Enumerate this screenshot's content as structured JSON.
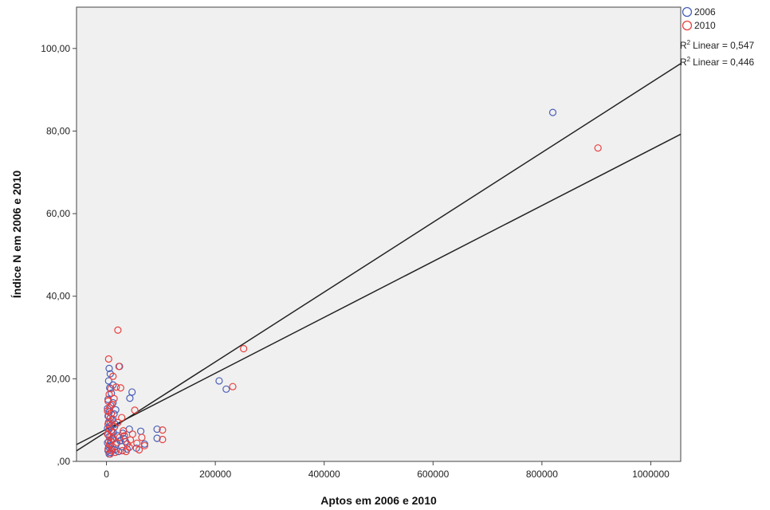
{
  "chart_data": {
    "type": "scatter",
    "title": "",
    "xlabel": "Aptos em 2006 e 2010",
    "ylabel": "Índice N em 2006 e 2010",
    "xlim": [
      -55000,
      1055000
    ],
    "ylim": [
      0,
      110
    ],
    "x_ticks": [
      {
        "value": 0,
        "label": "0"
      },
      {
        "value": 200000,
        "label": "200000"
      },
      {
        "value": 400000,
        "label": "400000"
      },
      {
        "value": 600000,
        "label": "600000"
      },
      {
        "value": 800000,
        "label": "800000"
      },
      {
        "value": 1000000,
        "label": "1000000"
      }
    ],
    "y_ticks": [
      {
        "value": 0,
        "label": ",00"
      },
      {
        "value": 20,
        "label": "20,00"
      },
      {
        "value": 40,
        "label": "40,00"
      },
      {
        "value": 60,
        "label": "60,00"
      },
      {
        "value": 80,
        "label": "80,00"
      },
      {
        "value": 100,
        "label": "100,00"
      }
    ],
    "grid": false,
    "plot_background": "#f0f0f0",
    "legend_position": "top-right",
    "series": [
      {
        "name": "2006",
        "color": "#4a5fb8",
        "points": [
          [
            820000,
            84.5
          ],
          [
            207000,
            19.5
          ],
          [
            220000,
            17.5
          ],
          [
            47000,
            16.8
          ],
          [
            43000,
            15.3
          ],
          [
            93000,
            7.8
          ],
          [
            93000,
            5.6
          ],
          [
            63000,
            7.3
          ],
          [
            55000,
            3.2
          ],
          [
            70000,
            4.2
          ],
          [
            42000,
            7.8
          ],
          [
            32000,
            5.5
          ],
          [
            24000,
            23.0
          ],
          [
            5000,
            22.5
          ],
          [
            7000,
            21.2
          ],
          [
            4000,
            19.5
          ],
          [
            6000,
            17.8
          ],
          [
            9000,
            16.5
          ],
          [
            3000,
            15.0
          ],
          [
            12000,
            14.2
          ],
          [
            8000,
            13.5
          ],
          [
            2000,
            12.8
          ],
          [
            5000,
            12.0
          ],
          [
            14000,
            11.5
          ],
          [
            3000,
            11.0
          ],
          [
            7000,
            10.5
          ],
          [
            10000,
            10.0
          ],
          [
            4000,
            9.5
          ],
          [
            16000,
            9.0
          ],
          [
            6000,
            8.5
          ],
          [
            2000,
            8.0
          ],
          [
            9000,
            7.5
          ],
          [
            13000,
            7.0
          ],
          [
            3000,
            6.5
          ],
          [
            5000,
            6.0
          ],
          [
            11000,
            5.5
          ],
          [
            8000,
            5.0
          ],
          [
            2000,
            4.5
          ],
          [
            18000,
            4.2
          ],
          [
            6000,
            3.8
          ],
          [
            4000,
            3.5
          ],
          [
            10000,
            3.0
          ],
          [
            3000,
            2.6
          ],
          [
            7000,
            2.2
          ],
          [
            5000,
            1.8
          ],
          [
            20000,
            6.2
          ],
          [
            25000,
            5.0
          ],
          [
            28000,
            3.6
          ],
          [
            35000,
            4.8
          ],
          [
            38000,
            3.0
          ],
          [
            15000,
            2.8
          ],
          [
            22000,
            2.4
          ],
          [
            30000,
            6.8
          ],
          [
            17000,
            12.5
          ],
          [
            12000,
            18.5
          ]
        ]
      },
      {
        "name": "2010",
        "color": "#e8403f",
        "points": [
          [
            903000,
            75.9
          ],
          [
            252000,
            27.3
          ],
          [
            232000,
            18.1
          ],
          [
            21000,
            31.8
          ],
          [
            4000,
            24.8
          ],
          [
            23000,
            23.0
          ],
          [
            12000,
            20.6
          ],
          [
            18000,
            18.0
          ],
          [
            26000,
            17.8
          ],
          [
            52000,
            12.4
          ],
          [
            103000,
            7.6
          ],
          [
            103000,
            5.3
          ],
          [
            65000,
            5.8
          ],
          [
            70000,
            3.8
          ],
          [
            60000,
            2.8
          ],
          [
            48000,
            6.6
          ],
          [
            38000,
            4.2
          ],
          [
            28000,
            10.6
          ],
          [
            8000,
            17.6
          ],
          [
            5000,
            16.2
          ],
          [
            3000,
            14.6
          ],
          [
            10000,
            13.8
          ],
          [
            6000,
            13.0
          ],
          [
            2000,
            12.2
          ],
          [
            9000,
            11.6
          ],
          [
            4000,
            11.0
          ],
          [
            12000,
            10.2
          ],
          [
            7000,
            9.6
          ],
          [
            3000,
            9.0
          ],
          [
            15000,
            8.4
          ],
          [
            5000,
            7.8
          ],
          [
            10000,
            7.2
          ],
          [
            2000,
            6.6
          ],
          [
            8000,
            6.0
          ],
          [
            13000,
            5.4
          ],
          [
            4000,
            4.8
          ],
          [
            6000,
            4.2
          ],
          [
            11000,
            3.6
          ],
          [
            3000,
            3.0
          ],
          [
            9000,
            2.6
          ],
          [
            16000,
            2.2
          ],
          [
            7000,
            1.8
          ],
          [
            19000,
            4.6
          ],
          [
            24000,
            5.8
          ],
          [
            33000,
            6.2
          ],
          [
            42000,
            3.4
          ],
          [
            29000,
            2.6
          ],
          [
            14000,
            15.2
          ],
          [
            21000,
            9.4
          ],
          [
            31000,
            7.4
          ],
          [
            44000,
            5.2
          ],
          [
            56000,
            4.4
          ],
          [
            36000,
            2.4
          ]
        ]
      }
    ],
    "fit_lines": [
      {
        "label": "R² Linear = 0,547",
        "r2_text": "Linear = 0,547",
        "intercept": 7.2,
        "slope": 8.45e-05,
        "color": "#222222"
      },
      {
        "label": "R² Linear = 0,446",
        "r2_text": "Linear = 0,446",
        "intercept": 7.8,
        "slope": 6.77e-05,
        "color": "#222222"
      }
    ]
  }
}
